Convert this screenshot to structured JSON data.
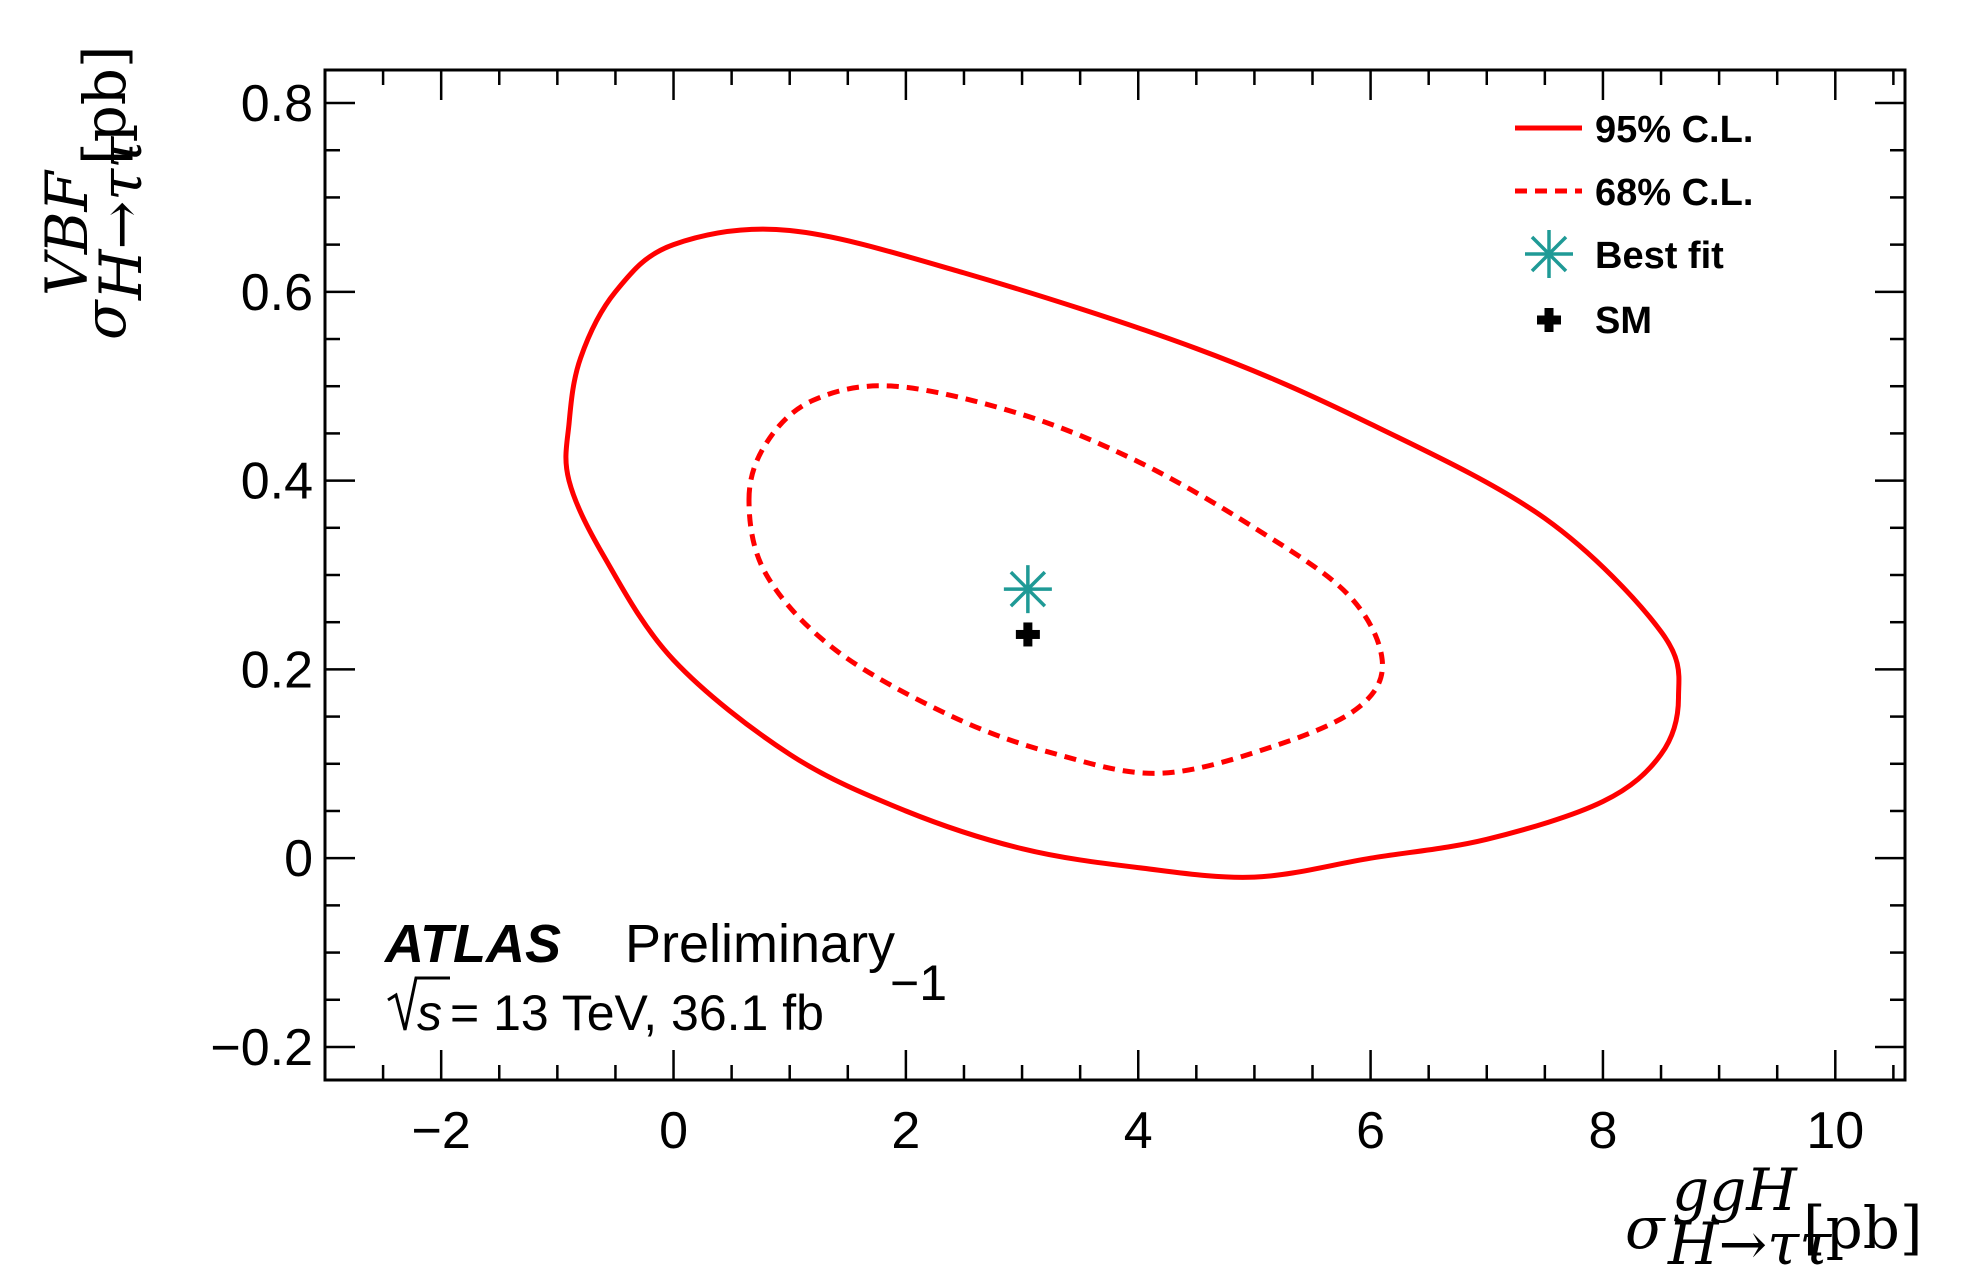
{
  "chart_data": {
    "type": "contour",
    "xaxis": {
      "label_symbol": "σ",
      "label_superscript": "ggH",
      "label_subscript": "H→ττ",
      "label_unit": "[pb]",
      "range": [
        -3,
        10.6
      ],
      "ticks": [
        -2,
        0,
        2,
        4,
        6,
        8,
        10
      ],
      "tick_labels": [
        "−2",
        "0",
        "2",
        "4",
        "6",
        "8",
        "10"
      ]
    },
    "yaxis": {
      "label_symbol": "σ",
      "label_superscript": "VBF",
      "label_subscript": "H→ττ",
      "label_unit": "[pb]",
      "range": [
        -0.235,
        0.835
      ],
      "ticks": [
        -0.2,
        0,
        0.2,
        0.4,
        0.6,
        0.8
      ],
      "tick_labels": [
        "−0.2",
        "0",
        "0.2",
        "0.4",
        "0.6",
        "0.8"
      ]
    },
    "series": [
      {
        "name": "95% C.L.",
        "style": "solid",
        "color": "#ff0000",
        "points": [
          [
            -0.9,
            0.46
          ],
          [
            -0.8,
            0.53
          ],
          [
            -0.5,
            0.6
          ],
          [
            0.0,
            0.65
          ],
          [
            1.0,
            0.665
          ],
          [
            2.5,
            0.62
          ],
          [
            4.5,
            0.54
          ],
          [
            6.0,
            0.46
          ],
          [
            7.5,
            0.36
          ],
          [
            8.5,
            0.24
          ],
          [
            8.65,
            0.17
          ],
          [
            8.5,
            0.11
          ],
          [
            8.0,
            0.06
          ],
          [
            7.0,
            0.02
          ],
          [
            6.0,
            0.0
          ],
          [
            5.0,
            -0.02
          ],
          [
            4.0,
            -0.01
          ],
          [
            3.0,
            0.01
          ],
          [
            2.0,
            0.05
          ],
          [
            1.0,
            0.11
          ],
          [
            0.0,
            0.21
          ],
          [
            -0.6,
            0.32
          ],
          [
            -0.9,
            0.4
          ]
        ]
      },
      {
        "name": "68% C.L.",
        "style": "dashed",
        "color": "#ff0000",
        "points": [
          [
            0.65,
            0.38
          ],
          [
            0.8,
            0.44
          ],
          [
            1.2,
            0.485
          ],
          [
            1.9,
            0.5
          ],
          [
            3.0,
            0.47
          ],
          [
            4.0,
            0.42
          ],
          [
            5.0,
            0.35
          ],
          [
            5.8,
            0.28
          ],
          [
            6.1,
            0.21
          ],
          [
            5.9,
            0.16
          ],
          [
            5.2,
            0.12
          ],
          [
            4.2,
            0.09
          ],
          [
            3.3,
            0.11
          ],
          [
            2.4,
            0.15
          ],
          [
            1.4,
            0.22
          ],
          [
            0.8,
            0.3
          ]
        ]
      }
    ],
    "markers": [
      {
        "name": "Best fit",
        "x": 3.05,
        "y": 0.285,
        "symbol": "asterisk",
        "color": "#1f9a96"
      },
      {
        "name": "SM",
        "x": 3.05,
        "y": 0.237,
        "symbol": "cross",
        "color": "#000000"
      }
    ],
    "legend": {
      "position": "top-right",
      "entries": [
        {
          "label": "95% C.L.",
          "symbol": "solid-line"
        },
        {
          "label": "68% C.L.",
          "symbol": "dashed-line"
        },
        {
          "label": "Best fit",
          "symbol": "asterisk"
        },
        {
          "label": "SM",
          "symbol": "cross"
        }
      ]
    },
    "annotation": {
      "experiment": "ATLAS",
      "status": "Preliminary",
      "sqrt_s": "s",
      "energy_lumi": "= 13 TeV, 36.1 fb",
      "lumi_exponent": "−1"
    },
    "grid": false
  }
}
